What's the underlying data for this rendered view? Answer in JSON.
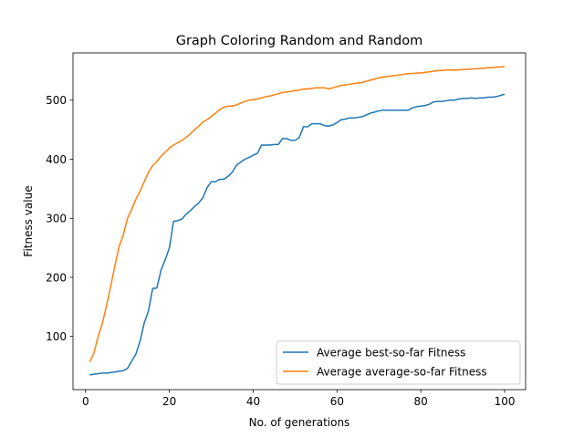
{
  "chart_data": {
    "type": "line",
    "title": "Graph Coloring Random and Random",
    "xlabel": "No. of generations",
    "ylabel": "Fitness value",
    "xlim": [
      -3,
      105
    ],
    "ylim": [
      10,
      580
    ],
    "xticks": [
      0,
      20,
      40,
      60,
      80,
      100
    ],
    "yticks": [
      100,
      200,
      300,
      400,
      500
    ],
    "grid": false,
    "legend_position": "lower-right",
    "series": [
      {
        "name": "Average best-so-far Fitness",
        "color": "#1f77b4",
        "x": [
          1,
          2,
          3,
          4,
          5,
          6,
          7,
          8,
          9,
          10,
          11,
          12,
          13,
          14,
          15,
          16,
          17,
          18,
          19,
          20,
          21,
          22,
          23,
          24,
          25,
          26,
          27,
          28,
          29,
          30,
          31,
          32,
          33,
          34,
          35,
          36,
          37,
          38,
          39,
          40,
          41,
          42,
          43,
          44,
          45,
          46,
          47,
          48,
          49,
          50,
          51,
          52,
          53,
          54,
          55,
          56,
          57,
          58,
          59,
          60,
          61,
          62,
          63,
          64,
          65,
          66,
          67,
          68,
          69,
          70,
          71,
          72,
          73,
          74,
          75,
          76,
          77,
          78,
          79,
          80,
          81,
          82,
          83,
          84,
          85,
          86,
          87,
          88,
          89,
          90,
          91,
          92,
          93,
          94,
          95,
          96,
          97,
          98,
          99,
          100
        ],
        "values": [
          35,
          36,
          37,
          38,
          38,
          39,
          40,
          41,
          42,
          46,
          58,
          70,
          92,
          123,
          143,
          181,
          182,
          212,
          230,
          250,
          295,
          296,
          299,
          307,
          313,
          320,
          326,
          335,
          352,
          362,
          362,
          366,
          366,
          371,
          378,
          390,
          395,
          400,
          403,
          407,
          410,
          424,
          424,
          424,
          425,
          425,
          435,
          435,
          432,
          432,
          437,
          455,
          455,
          460,
          460,
          460,
          457,
          456,
          458,
          462,
          467,
          468,
          470,
          470,
          471,
          472,
          475,
          478,
          480,
          482,
          483,
          483,
          483,
          483,
          483,
          483,
          483,
          487,
          489,
          490,
          491,
          493,
          497,
          498,
          498,
          499,
          500,
          500,
          502,
          503,
          503,
          504,
          503,
          504,
          504,
          505,
          505,
          506,
          508,
          510
        ]
      },
      {
        "name": "Average average-so-far Fitness",
        "color": "#ff7f0e",
        "x": [
          1,
          2,
          3,
          4,
          5,
          6,
          7,
          8,
          9,
          10,
          11,
          12,
          13,
          14,
          15,
          16,
          17,
          18,
          19,
          20,
          21,
          22,
          23,
          24,
          25,
          26,
          27,
          28,
          29,
          30,
          31,
          32,
          33,
          34,
          35,
          36,
          37,
          38,
          39,
          40,
          41,
          42,
          43,
          44,
          45,
          46,
          47,
          48,
          49,
          50,
          51,
          52,
          53,
          54,
          55,
          56,
          57,
          58,
          59,
          60,
          61,
          62,
          63,
          64,
          65,
          66,
          67,
          68,
          69,
          70,
          71,
          72,
          73,
          74,
          75,
          76,
          77,
          78,
          79,
          80,
          81,
          82,
          83,
          84,
          85,
          86,
          87,
          88,
          89,
          90,
          91,
          92,
          93,
          94,
          95,
          96,
          97,
          98,
          99,
          100
        ],
        "values": [
          57,
          72,
          100,
          122,
          152,
          185,
          220,
          252,
          272,
          300,
          315,
          332,
          346,
          362,
          378,
          389,
          396,
          405,
          412,
          419,
          424,
          428,
          432,
          437,
          443,
          450,
          456,
          463,
          467,
          472,
          478,
          484,
          488,
          490,
          490,
          492,
          495,
          498,
          500,
          501,
          502,
          504,
          506,
          507,
          509,
          511,
          513,
          514,
          515,
          516,
          517,
          519,
          519,
          520,
          521,
          521,
          521,
          519,
          521,
          523,
          525,
          526,
          527,
          528,
          529,
          530,
          532,
          534,
          536,
          538,
          539,
          540,
          541,
          542,
          543,
          544,
          545,
          545,
          546,
          546,
          547,
          548,
          549,
          550,
          550,
          551,
          551,
          551,
          551,
          552,
          552,
          553,
          553,
          554,
          554,
          555,
          555,
          556,
          556,
          557
        ]
      }
    ]
  }
}
